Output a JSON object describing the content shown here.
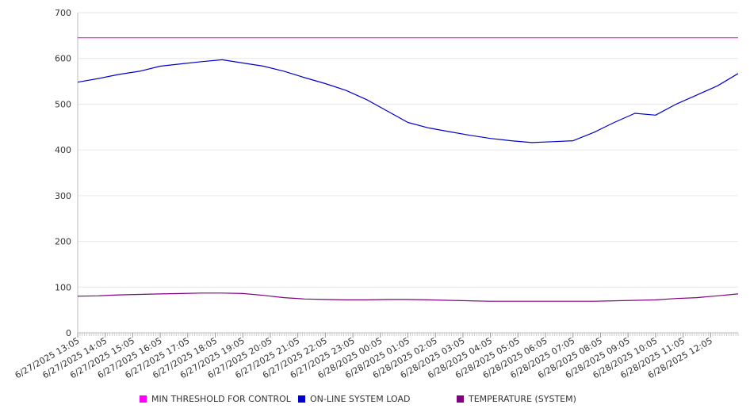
{
  "chart_data": {
    "type": "line",
    "title": "",
    "xlabel": "",
    "ylabel": "",
    "ylim": [
      0,
      700
    ],
    "yticks": [
      0,
      100,
      200,
      300,
      400,
      500,
      600,
      700
    ],
    "grid": true,
    "legend_position": "bottom",
    "x_tick_labels": [
      "6/27/2025 13:05",
      "6/27/2025 14:05",
      "6/27/2025 15:05",
      "6/27/2025 16:05",
      "6/27/2025 17:05",
      "6/27/2025 18:05",
      "6/27/2025 19:05",
      "6/27/2025 20:05",
      "6/27/2025 21:05",
      "6/27/2025 22:05",
      "6/27/2025 23:05",
      "6/28/2025 00:05",
      "6/28/2025 01:05",
      "6/28/2025 02:05",
      "6/28/2025 03:05",
      "6/28/2025 04:05",
      "6/28/2025 05:05",
      "6/28/2025 06:05",
      "6/28/2025 07:05",
      "6/28/2025 08:05",
      "6/28/2025 09:05",
      "6/28/2025 10:05",
      "6/28/2025 11:05",
      "6/28/2025 12:05"
    ],
    "x_end": "6/28/2025 13:05",
    "series": [
      {
        "name": "MIN THRESHOLD FOR CONTROL",
        "color": "#ff00ff",
        "values": [
          645,
          645
        ]
      },
      {
        "name": "ON-LINE SYSTEM LOAD",
        "color": "#0000cc",
        "values": [
          548,
          556,
          565,
          572,
          583,
          588,
          593,
          597,
          590,
          583,
          572,
          558,
          545,
          530,
          510,
          485,
          460,
          448,
          440,
          432,
          425,
          420,
          416,
          418,
          420,
          438,
          460,
          480,
          476,
          500,
          520,
          540,
          567
        ]
      },
      {
        "name": "TEMPERATURE (SYSTEM)",
        "color": "#800080",
        "values": [
          80,
          81,
          83,
          84,
          85,
          86,
          87,
          87,
          86,
          82,
          77,
          74,
          73,
          72,
          72,
          73,
          73,
          72,
          71,
          70,
          69,
          69,
          69,
          69,
          69,
          69,
          70,
          71,
          72,
          75,
          77,
          81,
          85
        ]
      }
    ]
  }
}
